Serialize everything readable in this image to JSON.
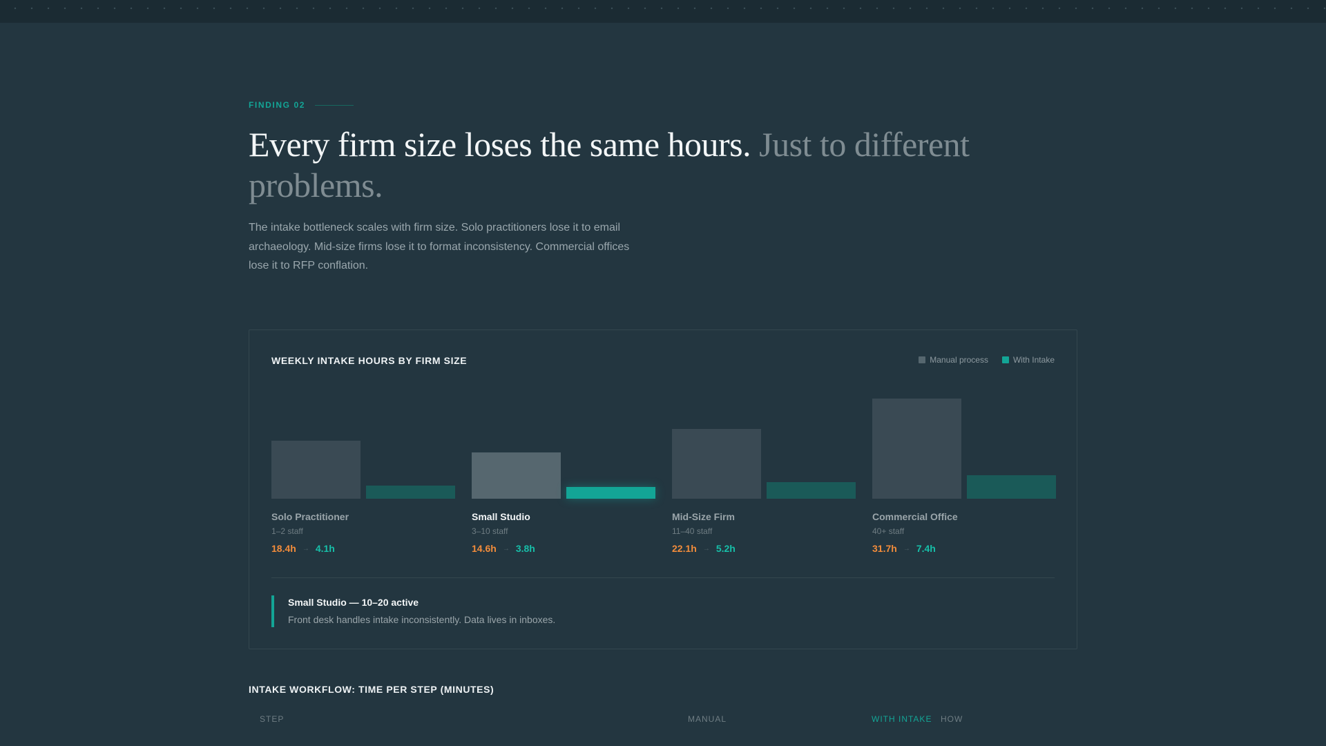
{
  "finding": {
    "eyebrow": "FINDING 02",
    "headline_main": "Every firm size loses the same hours.",
    "headline_muted": "Just to different problems.",
    "lede": "The intake bottleneck scales with firm size. Solo practitioners lose it to email archaeology. Mid-size firms lose it to format inconsistency. Commercial offices lose it to RFP conflation."
  },
  "chart_data": {
    "type": "bar",
    "title": "WEEKLY INTAKE HOURS BY FIRM SIZE",
    "legend": {
      "placement": "top-right",
      "items": [
        "Manual process",
        "With Intake"
      ]
    },
    "categories": [
      "Solo Practitioner",
      "Small Studio",
      "Mid-Size Firm",
      "Commercial Office"
    ],
    "subtitles": [
      "1–2 staff",
      "3–10 staff",
      "11–40 staff",
      "40+ staff"
    ],
    "series": [
      {
        "name": "Manual process",
        "values": [
          18.4,
          14.6,
          22.1,
          31.7
        ],
        "labels": [
          "18.4h",
          "14.6h",
          "22.1h",
          "31.7h"
        ]
      },
      {
        "name": "With Intake",
        "values": [
          4.1,
          3.8,
          5.2,
          7.4
        ],
        "labels": [
          "4.1h",
          "3.8h",
          "5.2h",
          "7.4h"
        ]
      }
    ],
    "ylim": [
      0,
      31.7
    ],
    "grid": false,
    "active_index": 1,
    "arrow": "→",
    "colors": {
      "manual": "#3a4a54",
      "manual_active": "#56676f",
      "intake": "#1a5a58",
      "intake_active": "#13a596",
      "legend_manual": "#56676f",
      "legend_intake": "#13a596"
    }
  },
  "callout": {
    "title": "Small Studio — 10–20 active",
    "text": "Front desk handles intake inconsistently. Data lives in inboxes."
  },
  "workflow": {
    "title": "INTAKE WORKFLOW: TIME PER STEP (MINUTES)",
    "columns": [
      "STEP",
      "MANUAL",
      "WITH INTAKE",
      "HOW"
    ]
  }
}
